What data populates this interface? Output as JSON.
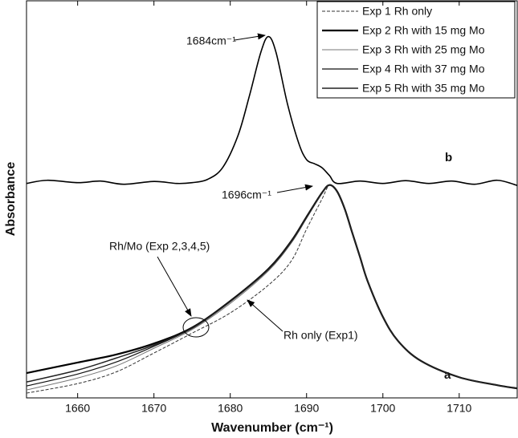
{
  "chart_data": {
    "type": "line",
    "xlabel": "Wavenumber (cm⁻¹)",
    "ylabel": "Absorbance",
    "xlim": [
      1653.3,
      1717.6
    ],
    "ylim": [
      0,
      1
    ],
    "xticks": [
      1660,
      1670,
      1680,
      1690,
      1700,
      1710
    ],
    "x": [
      1653.3,
      1660,
      1665,
      1670,
      1675,
      1680,
      1685,
      1688,
      1690,
      1692,
      1693,
      1694,
      1695,
      1696,
      1697,
      1698,
      1700,
      1702,
      1705,
      1710,
      1715,
      1717.6
    ],
    "series": [
      {
        "name": "Exp 1 Rh only",
        "color": "#333333",
        "dash": "4,2",
        "width": 1,
        "values": [
          0.012,
          0.036,
          0.065,
          0.113,
          0.163,
          0.214,
          0.284,
          0.345,
          0.425,
          0.5,
          0.536,
          0.52,
          0.476,
          0.415,
          0.355,
          0.294,
          0.204,
          0.143,
          0.093,
          0.052,
          0.032,
          0.024
        ]
      },
      {
        "name": "Exp 2 Rh with 15 mg Mo",
        "color": "#000000",
        "width": 2.2,
        "values": [
          0.0625,
          0.089,
          0.109,
          0.137,
          0.177,
          0.244,
          0.325,
          0.395,
          0.456,
          0.516,
          0.536,
          0.52,
          0.476,
          0.415,
          0.355,
          0.294,
          0.204,
          0.143,
          0.093,
          0.052,
          0.032,
          0.024
        ]
      },
      {
        "name": "Exp 3 Rh with 25 mg Mo",
        "color": "#777777",
        "width": 1,
        "values": [
          0.02,
          0.05,
          0.08,
          0.125,
          0.172,
          0.238,
          0.32,
          0.39,
          0.452,
          0.514,
          0.536,
          0.52,
          0.476,
          0.415,
          0.355,
          0.294,
          0.204,
          0.143,
          0.093,
          0.052,
          0.032,
          0.024
        ]
      },
      {
        "name": "Exp 4 Rh with 37 mg Mo",
        "color": "#111111",
        "width": 1.2,
        "values": [
          0.03,
          0.06,
          0.09,
          0.13,
          0.175,
          0.242,
          0.323,
          0.393,
          0.454,
          0.515,
          0.536,
          0.52,
          0.476,
          0.415,
          0.355,
          0.294,
          0.204,
          0.143,
          0.093,
          0.052,
          0.032,
          0.024
        ]
      },
      {
        "name": "Exp 5 Rh with 35 mg Mo",
        "color": "#222222",
        "width": 1.5,
        "values": [
          0.04,
          0.07,
          0.1,
          0.133,
          0.176,
          0.243,
          0.324,
          0.394,
          0.455,
          0.516,
          0.536,
          0.52,
          0.476,
          0.415,
          0.355,
          0.294,
          0.204,
          0.143,
          0.093,
          0.052,
          0.032,
          0.024
        ]
      },
      {
        "color": "#000000",
        "width": 1.6,
        "x": [
          1653.3,
          1656,
          1660,
          1663,
          1666,
          1670,
          1673,
          1675,
          1677,
          1679,
          1681,
          1682.5,
          1684,
          1685,
          1686,
          1687.5,
          1689,
          1690,
          1691,
          1692,
          1693,
          1694,
          1697,
          1700,
          1703,
          1706,
          1709,
          1712,
          1715,
          1717.6
        ],
        "values": [
          0.54,
          0.548,
          0.542,
          0.546,
          0.538,
          0.545,
          0.54,
          0.542,
          0.55,
          0.58,
          0.66,
          0.76,
          0.87,
          0.91,
          0.87,
          0.74,
          0.64,
          0.6,
          0.59,
          0.58,
          0.56,
          0.54,
          0.546,
          0.54,
          0.547,
          0.54,
          0.546,
          0.538,
          0.548,
          0.535
        ]
      }
    ],
    "annotations": [
      "1684cm⁻¹",
      "1696cm⁻¹",
      "Rh/Mo (Exp 2,3,4,5)",
      "Rh only (Exp1)",
      "b",
      "a"
    ]
  }
}
